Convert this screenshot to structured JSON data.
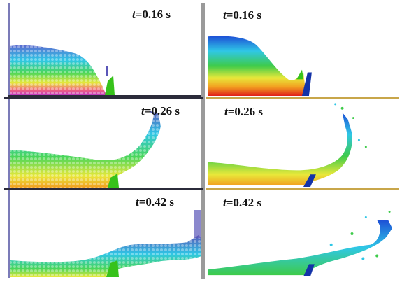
{
  "panels": [
    {
      "id": "left-0",
      "time_value": "=0.16 s"
    },
    {
      "id": "right-0",
      "time_value": "=0.16 s"
    },
    {
      "id": "left-1",
      "time_value": "=0.26 s"
    },
    {
      "id": "right-1",
      "time_value": "=0.26 s"
    },
    {
      "id": "left-2",
      "time_value": "=0.42 s"
    },
    {
      "id": "right-2",
      "time_value": "=0.42 s"
    }
  ],
  "time_symbol": "t",
  "colors": {
    "water_deep": "#e0201a",
    "water_mid_warm": "#f2a020",
    "water_mid": "#e8e83a",
    "water_green": "#3ecb4a",
    "water_cyan": "#2fc7e6",
    "water_blue": "#1d4fd6",
    "obstacle": "#37c21b",
    "wall_right": "#1433a8",
    "particle": "#5a56b8",
    "frame_dark": "#2b2b3a",
    "frame_gold": "#c8a64a"
  }
}
